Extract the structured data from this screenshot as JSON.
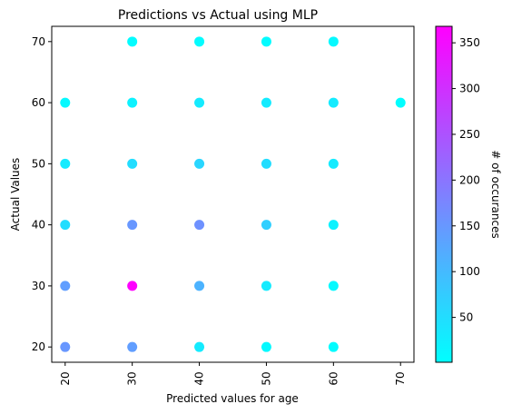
{
  "chart_data": {
    "type": "scatter",
    "title": "Predictions vs Actual using MLP",
    "xlabel": "Predicted values for age",
    "ylabel": "Actual Values",
    "xlim": [
      18,
      72
    ],
    "ylim": [
      17.5,
      72.5
    ],
    "x_ticks": [
      "20",
      "30",
      "40",
      "50",
      "60",
      "70"
    ],
    "y_ticks": [
      "20",
      "30",
      "40",
      "50",
      "60",
      "70"
    ],
    "grid": false,
    "points": [
      {
        "x": 20,
        "y": 20,
        "count": 150
      },
      {
        "x": 20,
        "y": 30,
        "count": 140
      },
      {
        "x": 20,
        "y": 40,
        "count": 50
      },
      {
        "x": 20,
        "y": 50,
        "count": 30
      },
      {
        "x": 20,
        "y": 60,
        "count": 10
      },
      {
        "x": 30,
        "y": 20,
        "count": 140
      },
      {
        "x": 30,
        "y": 30,
        "count": 368
      },
      {
        "x": 30,
        "y": 40,
        "count": 150
      },
      {
        "x": 30,
        "y": 50,
        "count": 50
      },
      {
        "x": 30,
        "y": 60,
        "count": 20
      },
      {
        "x": 30,
        "y": 70,
        "count": 5
      },
      {
        "x": 40,
        "y": 20,
        "count": 30
      },
      {
        "x": 40,
        "y": 30,
        "count": 110
      },
      {
        "x": 40,
        "y": 40,
        "count": 160
      },
      {
        "x": 40,
        "y": 50,
        "count": 60
      },
      {
        "x": 40,
        "y": 60,
        "count": 30
      },
      {
        "x": 40,
        "y": 70,
        "count": 5
      },
      {
        "x": 50,
        "y": 20,
        "count": 10
      },
      {
        "x": 50,
        "y": 30,
        "count": 30
      },
      {
        "x": 50,
        "y": 40,
        "count": 70
      },
      {
        "x": 50,
        "y": 50,
        "count": 50
      },
      {
        "x": 50,
        "y": 60,
        "count": 30
      },
      {
        "x": 50,
        "y": 70,
        "count": 5
      },
      {
        "x": 60,
        "y": 20,
        "count": 5
      },
      {
        "x": 60,
        "y": 30,
        "count": 10
      },
      {
        "x": 60,
        "y": 40,
        "count": 20
      },
      {
        "x": 60,
        "y": 50,
        "count": 30
      },
      {
        "x": 60,
        "y": 60,
        "count": 30
      },
      {
        "x": 60,
        "y": 70,
        "count": 10
      },
      {
        "x": 70,
        "y": 60,
        "count": 3
      }
    ],
    "colormap": "cool",
    "colorbar": {
      "label": "# of occurances",
      "range": [
        1,
        368
      ],
      "ticks": [
        "50",
        "100",
        "150",
        "200",
        "250",
        "300",
        "350"
      ],
      "low_color": "#00ffff",
      "high_color": "#ff00ff"
    }
  }
}
